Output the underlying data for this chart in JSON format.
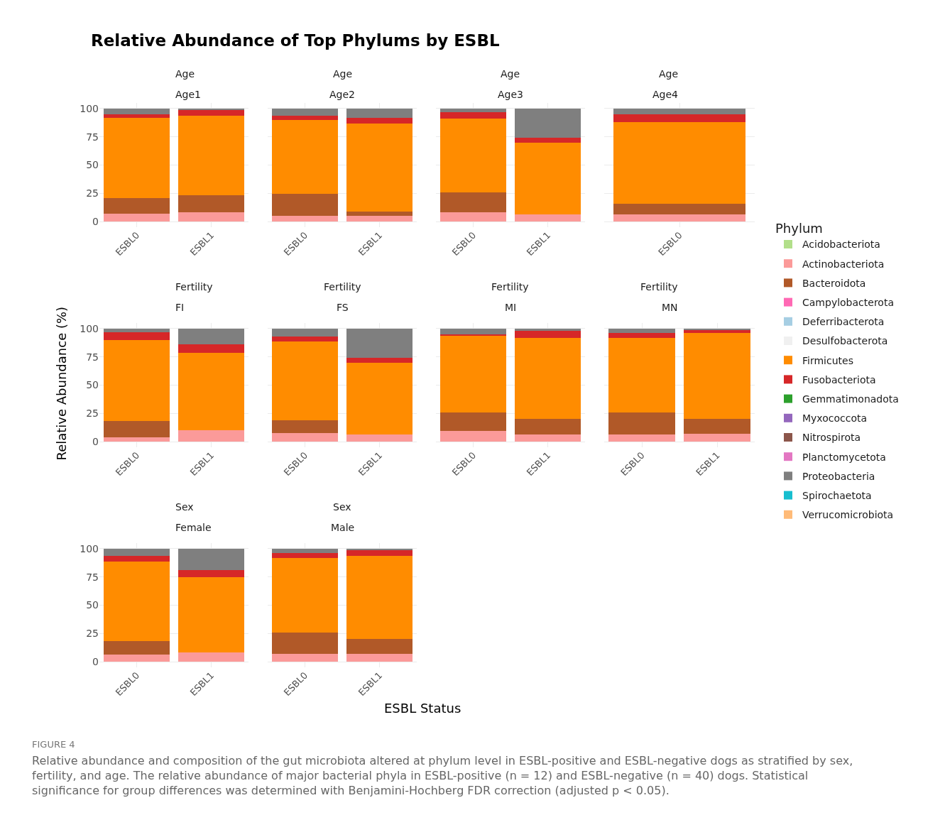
{
  "chart_data": [
    {
      "type": "other",
      "title": "Relative Abundance of Top Phylums by ESBL",
      "xlabel": "ESBL Status",
      "ylabel": "Relative Abundance (%)",
      "legend_title": "Phylum",
      "annotations": [
        "FIGURE 4",
        "Relative abundance and composition of the gut microbiota altered at phylum level in ESBL-positive and ESBL-negative dogs as stratified by sex, fertility, and age. The relative abundance of major bacterial phyla in ESBL-positive (n = 12) and ESBL-negative (n = 40) dogs. Statistical significance for group differences was determined with Benjamini-Hochberg FDR correction (adjusted p < 0.05)."
      ]
    },
    {
      "type": "bar",
      "title": "Age",
      "subtitle": "Age1",
      "categories": [
        "ESBL0",
        "ESBL1"
      ],
      "stacked": true,
      "grid": true,
      "legend": "right",
      "ylim": [
        -5,
        105
      ],
      "yticks": [
        0,
        25,
        50,
        75,
        100
      ],
      "series": [
        {
          "name": "Acidobacteriota",
          "color": "#b2df8a",
          "values": [
            0,
            0
          ]
        },
        {
          "name": "Actinobacteriota",
          "color": "#fb9a99",
          "values": [
            7,
            8.5
          ]
        },
        {
          "name": "Bacteroidota",
          "color": "#b15928",
          "values": [
            14,
            15
          ]
        },
        {
          "name": "Campylobacterota",
          "color": "#ff69b4",
          "values": [
            0,
            0
          ]
        },
        {
          "name": "Deferribacterota",
          "color": "#a6cee3",
          "values": [
            0,
            0
          ]
        },
        {
          "name": "Desulfobacterota",
          "color": "#f0f0f0",
          "values": [
            0,
            0
          ]
        },
        {
          "name": "Firmicutes",
          "color": "#ff8c00",
          "values": [
            71,
            70.5
          ]
        },
        {
          "name": "Fusobacteriota",
          "color": "#d62728",
          "values": [
            3,
            4.5
          ]
        },
        {
          "name": "Gemmatimonadota",
          "color": "#2ca02c",
          "values": [
            0,
            0
          ]
        },
        {
          "name": "Myxococcota",
          "color": "#9467bd",
          "values": [
            0,
            0
          ]
        },
        {
          "name": "Nitrospirota",
          "color": "#8c564b",
          "values": [
            0,
            0
          ]
        },
        {
          "name": "Planctomycetota",
          "color": "#e377c2",
          "values": [
            0,
            0
          ]
        },
        {
          "name": "Proteobacteria",
          "color": "#7f7f7f",
          "values": [
            5,
            1.5
          ]
        },
        {
          "name": "Spirochaetota",
          "color": "#17becf",
          "values": [
            0,
            0
          ]
        },
        {
          "name": "Verrucomicrobiota",
          "color": "#ffbb78",
          "values": [
            0,
            0
          ]
        }
      ]
    },
    {
      "type": "bar",
      "title": "Age",
      "subtitle": "Age2",
      "categories": [
        "ESBL0",
        "ESBL1"
      ],
      "stacked": true,
      "grid": true,
      "tick_labels": "x",
      "ylim": [
        -5,
        105
      ],
      "yticks": [
        0,
        25,
        50,
        75,
        100
      ],
      "series": [
        {
          "name": "Actinobacteriota",
          "color": "#fb9a99",
          "values": [
            5,
            5
          ]
        },
        {
          "name": "Bacteroidota",
          "color": "#b15928",
          "values": [
            19.5,
            4
          ]
        },
        {
          "name": "Firmicutes",
          "color": "#ff8c00",
          "values": [
            65.5,
            78
          ]
        },
        {
          "name": "Fusobacteriota",
          "color": "#d62728",
          "values": [
            4,
            5
          ]
        },
        {
          "name": "Proteobacteria",
          "color": "#7f7f7f",
          "values": [
            6,
            8
          ]
        }
      ]
    },
    {
      "type": "bar",
      "title": "Age",
      "subtitle": "Age3",
      "categories": [
        "ESBL0",
        "ESBL1"
      ],
      "stacked": true,
      "grid": true,
      "tick_labels": "x",
      "ylim": [
        -5,
        105
      ],
      "yticks": [
        0,
        25,
        50,
        75,
        100
      ],
      "series": [
        {
          "name": "Actinobacteriota",
          "color": "#fb9a99",
          "values": [
            8,
            6.5
          ]
        },
        {
          "name": "Bacteroidota",
          "color": "#b15928",
          "values": [
            17.5,
            0
          ]
        },
        {
          "name": "Firmicutes",
          "color": "#ff8c00",
          "values": [
            65.5,
            63.5
          ]
        },
        {
          "name": "Fusobacteriota",
          "color": "#d62728",
          "values": [
            6,
            4
          ]
        },
        {
          "name": "Proteobacteria",
          "color": "#7f7f7f",
          "values": [
            3,
            26
          ]
        }
      ]
    },
    {
      "type": "bar",
      "title": "Age",
      "subtitle": "Age4",
      "categories": [
        "ESBL0"
      ],
      "stacked": true,
      "grid": true,
      "tick_labels": "x",
      "ylim": [
        -5,
        105
      ],
      "yticks": [
        0,
        25,
        50,
        75,
        100
      ],
      "series": [
        {
          "name": "Actinobacteriota",
          "color": "#fb9a99",
          "values": [
            6.5
          ]
        },
        {
          "name": "Bacteroidota",
          "color": "#b15928",
          "values": [
            9.5
          ]
        },
        {
          "name": "Firmicutes",
          "color": "#ff8c00",
          "values": [
            72
          ]
        },
        {
          "name": "Fusobacteriota",
          "color": "#d62728",
          "values": [
            7
          ]
        },
        {
          "name": "Proteobacteria",
          "color": "#7f7f7f",
          "values": [
            5
          ]
        }
      ]
    },
    {
      "type": "bar",
      "title": "Fertility",
      "subtitle": "FI",
      "categories": [
        "ESBL0",
        "ESBL1"
      ],
      "stacked": true,
      "grid": true,
      "ylim": [
        -5,
        105
      ],
      "yticks": [
        0,
        25,
        50,
        75,
        100
      ],
      "series": [
        {
          "name": "Actinobacteriota",
          "color": "#fb9a99",
          "values": [
            4,
            10
          ]
        },
        {
          "name": "Bacteroidota",
          "color": "#b15928",
          "values": [
            14,
            0
          ]
        },
        {
          "name": "Firmicutes",
          "color": "#ff8c00",
          "values": [
            72,
            68.5
          ]
        },
        {
          "name": "Fusobacteriota",
          "color": "#d62728",
          "values": [
            7,
            7.5
          ]
        },
        {
          "name": "Proteobacteria",
          "color": "#7f7f7f",
          "values": [
            3,
            14
          ]
        }
      ]
    },
    {
      "type": "bar",
      "title": "Fertility",
      "subtitle": "FS",
      "categories": [
        "ESBL0",
        "ESBL1"
      ],
      "stacked": true,
      "grid": true,
      "tick_labels": "x",
      "ylim": [
        -5,
        105
      ],
      "yticks": [
        0,
        25,
        50,
        75,
        100
      ],
      "series": [
        {
          "name": "Actinobacteriota",
          "color": "#fb9a99",
          "values": [
            7.5,
            6.5
          ]
        },
        {
          "name": "Bacteroidota",
          "color": "#b15928",
          "values": [
            11.5,
            0
          ]
        },
        {
          "name": "Firmicutes",
          "color": "#ff8c00",
          "values": [
            69.5,
            63.5
          ]
        },
        {
          "name": "Fusobacteriota",
          "color": "#d62728",
          "values": [
            4.5,
            4
          ]
        },
        {
          "name": "Proteobacteria",
          "color": "#7f7f7f",
          "values": [
            7,
            26
          ]
        }
      ]
    },
    {
      "type": "bar",
      "title": "Fertility",
      "subtitle": "MI",
      "categories": [
        "ESBL0",
        "ESBL1"
      ],
      "stacked": true,
      "grid": true,
      "tick_labels": "x",
      "ylim": [
        -5,
        105
      ],
      "yticks": [
        0,
        25,
        50,
        75,
        100
      ],
      "series": [
        {
          "name": "Actinobacteriota",
          "color": "#fb9a99",
          "values": [
            9.5,
            6.5
          ]
        },
        {
          "name": "Bacteroidota",
          "color": "#b15928",
          "values": [
            16,
            13.5
          ]
        },
        {
          "name": "Firmicutes",
          "color": "#ff8c00",
          "values": [
            68.5,
            72
          ]
        },
        {
          "name": "Fusobacteriota",
          "color": "#d62728",
          "values": [
            1,
            6
          ]
        },
        {
          "name": "Proteobacteria",
          "color": "#7f7f7f",
          "values": [
            5,
            2
          ]
        }
      ]
    },
    {
      "type": "bar",
      "title": "Fertility",
      "subtitle": "MN",
      "categories": [
        "ESBL0",
        "ESBL1"
      ],
      "stacked": true,
      "grid": true,
      "tick_labels": "x",
      "ylim": [
        -5,
        105
      ],
      "yticks": [
        0,
        25,
        50,
        75,
        100
      ],
      "series": [
        {
          "name": "Actinobacteriota",
          "color": "#fb9a99",
          "values": [
            6.5,
            7
          ]
        },
        {
          "name": "Bacteroidota",
          "color": "#b15928",
          "values": [
            19,
            13
          ]
        },
        {
          "name": "Firmicutes",
          "color": "#ff8c00",
          "values": [
            66.5,
            76.5
          ]
        },
        {
          "name": "Fusobacteriota",
          "color": "#d62728",
          "values": [
            4,
            2
          ]
        },
        {
          "name": "Proteobacteria",
          "color": "#7f7f7f",
          "values": [
            4,
            1.5
          ]
        }
      ]
    },
    {
      "type": "bar",
      "title": "Sex",
      "subtitle": "Female",
      "categories": [
        "ESBL0",
        "ESBL1"
      ],
      "stacked": true,
      "grid": true,
      "ylim": [
        -5,
        105
      ],
      "yticks": [
        0,
        25,
        50,
        75,
        100
      ],
      "series": [
        {
          "name": "Actinobacteriota",
          "color": "#fb9a99",
          "values": [
            6.5,
            8.5
          ]
        },
        {
          "name": "Bacteroidota",
          "color": "#b15928",
          "values": [
            12,
            0
          ]
        },
        {
          "name": "Firmicutes",
          "color": "#ff8c00",
          "values": [
            70,
            66.5
          ]
        },
        {
          "name": "Fusobacteriota",
          "color": "#d62728",
          "values": [
            5.5,
            6
          ]
        },
        {
          "name": "Proteobacteria",
          "color": "#7f7f7f",
          "values": [
            6,
            19
          ]
        }
      ]
    },
    {
      "type": "bar",
      "title": "Sex",
      "subtitle": "Male",
      "categories": [
        "ESBL0",
        "ESBL1"
      ],
      "stacked": true,
      "grid": true,
      "tick_labels": "x",
      "ylim": [
        -5,
        105
      ],
      "yticks": [
        0,
        25,
        50,
        75,
        100
      ],
      "series": [
        {
          "name": "Actinobacteriota",
          "color": "#fb9a99",
          "values": [
            7,
            7
          ]
        },
        {
          "name": "Bacteroidota",
          "color": "#b15928",
          "values": [
            18.5,
            13
          ]
        },
        {
          "name": "Firmicutes",
          "color": "#ff8c00",
          "values": [
            66.5,
            74
          ]
        },
        {
          "name": "Fusobacteriota",
          "color": "#d62728",
          "values": [
            4,
            4.5
          ]
        },
        {
          "name": "Proteobacteria",
          "color": "#7f7f7f",
          "values": [
            4,
            1.5
          ]
        }
      ]
    }
  ]
}
